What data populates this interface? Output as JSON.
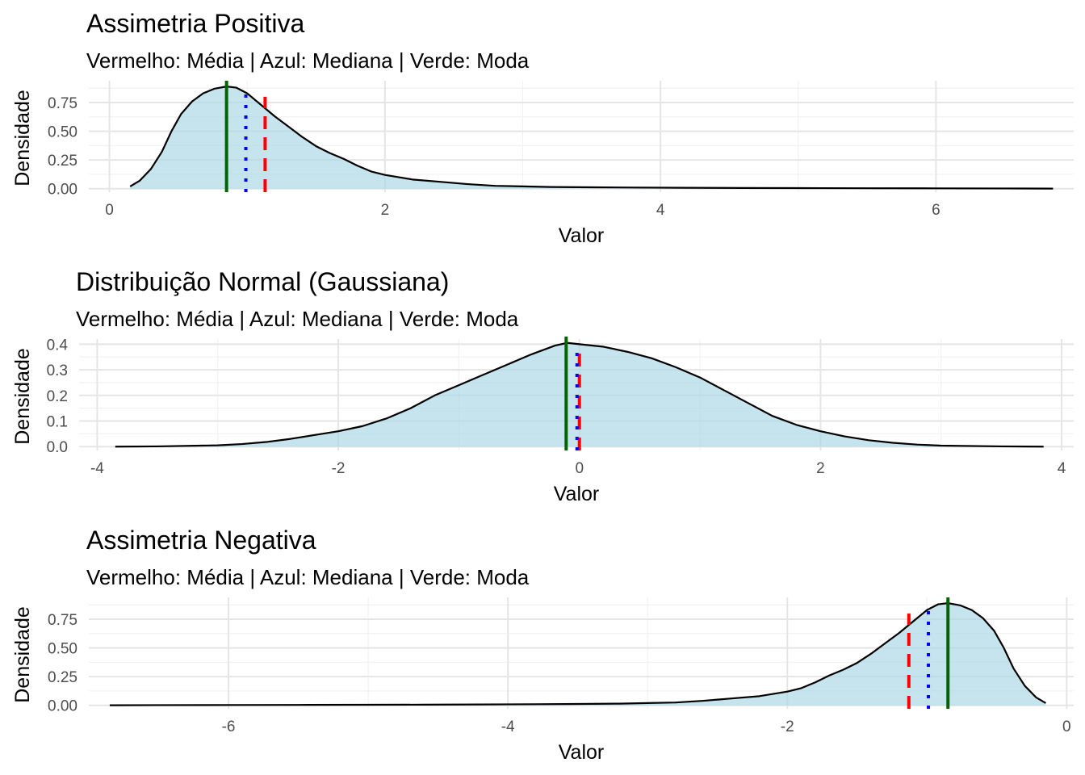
{
  "chart_data": [
    {
      "type": "area",
      "title": "Assimetria Positiva",
      "subtitle": "Vermelho: Média | Azul: Mediana | Verde: Moda",
      "xlabel": "Valor",
      "ylabel": "Densidade",
      "xlim": [
        -0.15,
        7.0
      ],
      "ylim": [
        -0.03,
        0.94
      ],
      "x_ticks": [
        0,
        2,
        4,
        6
      ],
      "x_tick_labels": [
        "0",
        "2",
        "4",
        "6"
      ],
      "y_ticks": [
        0,
        0.25,
        0.5,
        0.75
      ],
      "y_tick_labels": [
        "0.00",
        "0.25",
        "0.50",
        "0.75"
      ],
      "grid": true,
      "fill_color": "#add8e6",
      "series": [
        {
          "x": [
            0.15,
            0.22,
            0.3,
            0.38,
            0.45,
            0.52,
            0.6,
            0.68,
            0.76,
            0.85,
            0.92,
            1.0,
            1.1,
            1.2,
            1.3,
            1.4,
            1.5,
            1.6,
            1.7,
            1.8,
            1.9,
            2.0,
            2.2,
            2.4,
            2.6,
            2.8,
            3.0,
            3.2,
            3.5,
            3.8,
            4.2,
            4.6,
            5.0,
            5.5,
            6.0,
            6.5,
            6.85
          ],
          "y": [
            0.02,
            0.07,
            0.17,
            0.32,
            0.5,
            0.65,
            0.76,
            0.83,
            0.87,
            0.89,
            0.88,
            0.83,
            0.73,
            0.63,
            0.54,
            0.45,
            0.37,
            0.31,
            0.26,
            0.2,
            0.15,
            0.12,
            0.08,
            0.06,
            0.04,
            0.025,
            0.02,
            0.015,
            0.012,
            0.01,
            0.008,
            0.006,
            0.005,
            0.004,
            0.003,
            0.002,
            0.001
          ]
        }
      ],
      "lines": [
        {
          "label": "Média",
          "x": 1.13,
          "color": "#ff0000",
          "style": "dashed",
          "top": 0.8
        },
        {
          "label": "Mediana",
          "x": 0.99,
          "color": "#0000ff",
          "style": "dotted",
          "top": 0.84
        },
        {
          "label": "Moda",
          "x": 0.85,
          "color": "#006400",
          "style": "solid",
          "top": 0.94
        }
      ]
    },
    {
      "type": "area",
      "title": "Distribuição Normal (Gaussiana)",
      "subtitle": "Vermelho: Média | Azul: Mediana | Verde: Moda",
      "xlabel": "Valor",
      "ylabel": "Densidade",
      "xlim": [
        -4.15,
        4.1
      ],
      "ylim": [
        -0.015,
        0.42
      ],
      "x_ticks": [
        -4,
        -2,
        0,
        2,
        4
      ],
      "x_tick_labels": [
        "-4",
        "-2",
        "0",
        "2",
        "4"
      ],
      "y_ticks": [
        0,
        0.1,
        0.2,
        0.3,
        0.4
      ],
      "y_tick_labels": [
        "0.0",
        "0.1",
        "0.2",
        "0.3",
        "0.4"
      ],
      "grid": true,
      "fill_color": "#add8e6",
      "series": [
        {
          "x": [
            -3.85,
            -3.5,
            -3.0,
            -2.8,
            -2.6,
            -2.4,
            -2.2,
            -2.0,
            -1.8,
            -1.6,
            -1.4,
            -1.2,
            -1.0,
            -0.8,
            -0.6,
            -0.4,
            -0.2,
            -0.1,
            0.0,
            0.2,
            0.4,
            0.6,
            0.8,
            1.0,
            1.2,
            1.4,
            1.6,
            1.8,
            2.0,
            2.2,
            2.4,
            2.6,
            2.8,
            3.0,
            3.5,
            3.85
          ],
          "y": [
            0.0,
            0.001,
            0.005,
            0.01,
            0.018,
            0.03,
            0.045,
            0.06,
            0.08,
            0.11,
            0.15,
            0.2,
            0.24,
            0.28,
            0.32,
            0.36,
            0.395,
            0.405,
            0.4,
            0.39,
            0.37,
            0.345,
            0.31,
            0.27,
            0.22,
            0.17,
            0.12,
            0.085,
            0.06,
            0.04,
            0.025,
            0.015,
            0.008,
            0.004,
            0.001,
            0.0
          ]
        }
      ],
      "lines": [
        {
          "label": "Média",
          "x": 0.0,
          "color": "#ff0000",
          "style": "dashed",
          "top": 0.375
        },
        {
          "label": "Mediana",
          "x": -0.02,
          "color": "#0000ff",
          "style": "dotted",
          "top": 0.39
        },
        {
          "label": "Moda",
          "x": -0.11,
          "color": "#006400",
          "style": "solid",
          "top": 0.43
        }
      ]
    },
    {
      "type": "area",
      "title": "Assimetria Negativa",
      "subtitle": "Vermelho: Média | Azul: Mediana | Verde: Moda",
      "xlabel": "Valor",
      "ylabel": "Densidade",
      "xlim": [
        -7.0,
        0.05
      ],
      "ylim": [
        -0.03,
        0.94
      ],
      "x_ticks": [
        -6,
        -4,
        -2,
        0
      ],
      "x_tick_labels": [
        "-6",
        "-4",
        "-2",
        "0"
      ],
      "y_ticks": [
        0,
        0.25,
        0.5,
        0.75
      ],
      "y_tick_labels": [
        "0.00",
        "0.25",
        "0.50",
        "0.75"
      ],
      "grid": true,
      "fill_color": "#add8e6",
      "series": [
        {
          "x": [
            -6.85,
            -6.5,
            -6.0,
            -5.5,
            -5.0,
            -4.6,
            -4.2,
            -3.8,
            -3.5,
            -3.2,
            -3.0,
            -2.8,
            -2.6,
            -2.4,
            -2.2,
            -2.0,
            -1.9,
            -1.8,
            -1.7,
            -1.6,
            -1.5,
            -1.4,
            -1.3,
            -1.2,
            -1.1,
            -1.0,
            -0.92,
            -0.85,
            -0.76,
            -0.68,
            -0.6,
            -0.52,
            -0.45,
            -0.38,
            -0.3,
            -0.22,
            -0.15
          ],
          "y": [
            0.001,
            0.002,
            0.003,
            0.004,
            0.005,
            0.006,
            0.008,
            0.01,
            0.012,
            0.015,
            0.02,
            0.025,
            0.04,
            0.06,
            0.08,
            0.12,
            0.15,
            0.2,
            0.26,
            0.31,
            0.37,
            0.45,
            0.54,
            0.63,
            0.73,
            0.83,
            0.88,
            0.89,
            0.87,
            0.83,
            0.76,
            0.65,
            0.5,
            0.32,
            0.17,
            0.07,
            0.02
          ]
        }
      ],
      "lines": [
        {
          "label": "Média",
          "x": -1.13,
          "color": "#ff0000",
          "style": "dashed",
          "top": 0.8
        },
        {
          "label": "Mediana",
          "x": -0.99,
          "color": "#0000ff",
          "style": "dotted",
          "top": 0.84
        },
        {
          "label": "Moda",
          "x": -0.85,
          "color": "#006400",
          "style": "solid",
          "top": 0.94
        }
      ]
    }
  ]
}
